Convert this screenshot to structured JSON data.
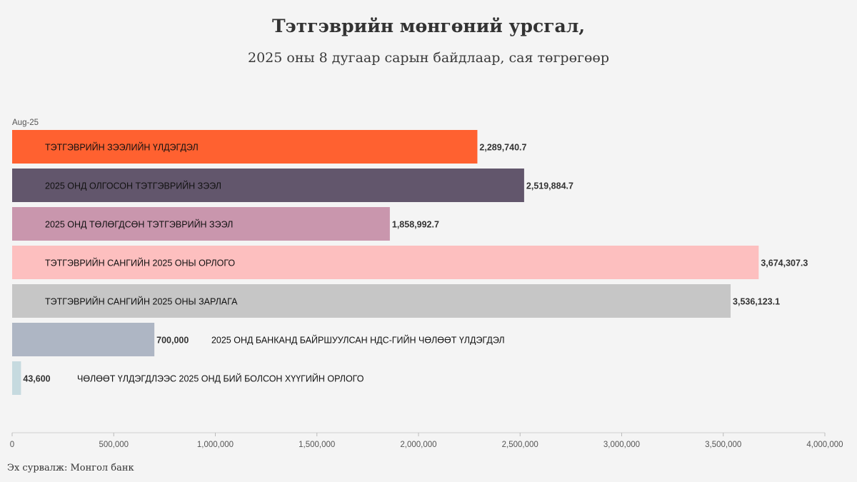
{
  "header": {
    "title": "Тэтгэврийн мөнгөний урсгал,",
    "subtitle": "2025 оны 8 дугаар сарын байдлаар, сая төгрөгөөр"
  },
  "footer": {
    "source": "Эх сурвалж: Монгол банк"
  },
  "chart_data": {
    "type": "bar",
    "orientation": "horizontal",
    "period": "Aug-25",
    "xlim": [
      0,
      4000000
    ],
    "ticks": [
      0,
      500000,
      1000000,
      1500000,
      2000000,
      2500000,
      3000000,
      3500000,
      4000000
    ],
    "tick_labels": [
      "0",
      "500,000",
      "1,000,000",
      "1,500,000",
      "2,000,000",
      "2,500,000",
      "3,000,000",
      "3,500,000",
      "4,000,000"
    ],
    "grid": false,
    "bars": [
      {
        "category": "ТЭТГЭВРИЙН ЗЭЭЛИЙН ҮЛДЭГДЭЛ",
        "value": 2289740.7,
        "value_label": "2,289,740.7",
        "color": "#ff6130",
        "label_position": "inside"
      },
      {
        "category": "2025 ОНД ОЛГОСОН ТЭТГЭВРИЙН ЗЭЭЛ",
        "value": 2519884.7,
        "value_label": "2,519,884.7",
        "color": "#62566c",
        "label_position": "inside"
      },
      {
        "category": "2025 ОНД ТӨЛӨГДСӨН ТЭТГЭВРИЙН ЗЭЭЛ",
        "value": 1858992.7,
        "value_label": "1,858,992.7",
        "color": "#c996ad",
        "label_position": "inside"
      },
      {
        "category": "ТЭТГЭВРИЙН САНГИЙН 2025 ОНЫ ОРЛОГО",
        "value": 3674307.3,
        "value_label": "3,674,307.3",
        "color": "#fdbfbf",
        "label_position": "inside"
      },
      {
        "category": "ТЭТГЭВРИЙН САНГИЙН 2025 ОНЫ ЗАРЛАГА",
        "value": 3536123.1,
        "value_label": "3,536,123.1",
        "color": "#c6c6c6",
        "label_position": "inside"
      },
      {
        "category": "2025 ОНД БАНКАНД БАЙРШУУЛСАН НДС-ГИЙН ЧӨЛӨӨТ ҮЛДЭГДЭЛ",
        "value": 700000,
        "value_label": "700,000",
        "color": "#aeb6c4",
        "label_position": "outside"
      },
      {
        "category": "ЧӨЛӨӨТ ҮЛДЭГДЛЭЭС 2025 ОНД БИЙ БОЛСОН ХҮҮГИЙН ОРЛОГО",
        "value": 43600,
        "value_label": "43,600",
        "color": "#c6dadf",
        "label_position": "outside"
      }
    ]
  }
}
